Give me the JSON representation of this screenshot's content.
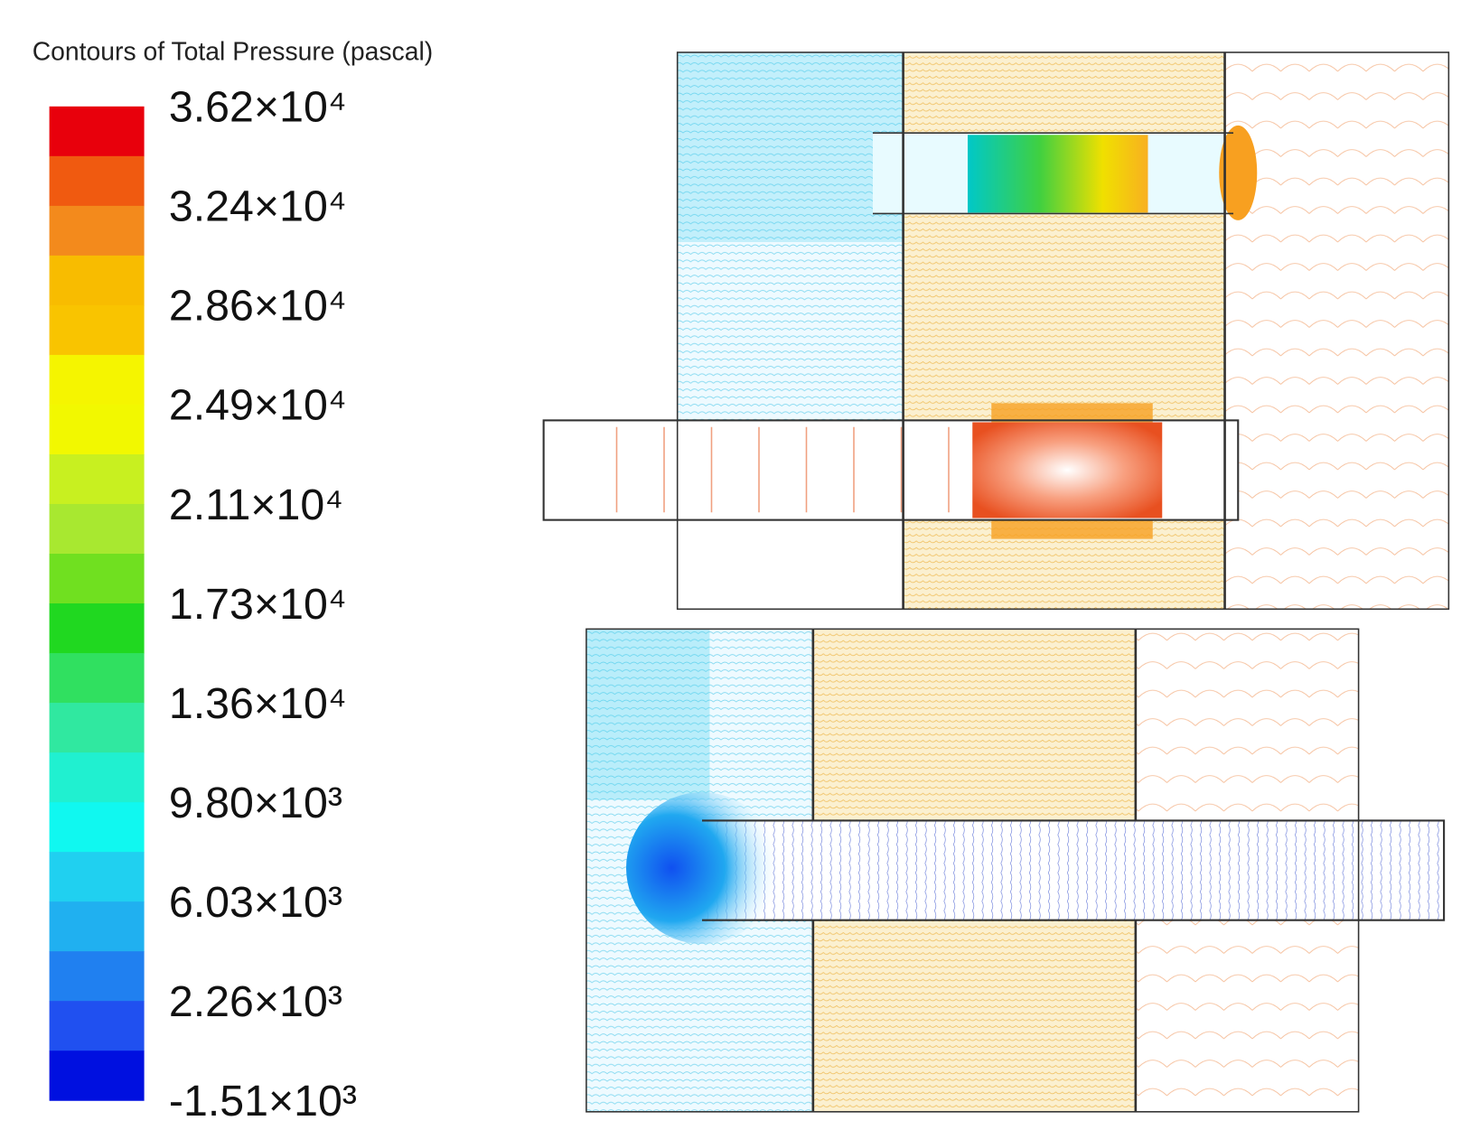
{
  "legend": {
    "title": "Contours of Total Pressure (pascal)",
    "labels": [
      "3.62×10⁴",
      "3.24×10⁴",
      "2.86×10⁴",
      "2.49×10⁴",
      "2.11×10⁴",
      "1.73×10⁴",
      "1.36×10⁴",
      "9.80×10³",
      "6.03×10³",
      "2.26×10³",
      "-1.51×10³"
    ],
    "colors": [
      "#e8000c",
      "#f05a10",
      "#f38a1c",
      "#f8bc00",
      "#f9c400",
      "#f5f500",
      "#f2f800",
      "#c8f020",
      "#a8e830",
      "#70e020",
      "#20d820",
      "#30e060",
      "#30e8a0",
      "#20f0d0",
      "#10f8f0",
      "#20d0f0",
      "#20b0f0",
      "#2080f0",
      "#2050f0",
      "#0010e0"
    ]
  }
}
